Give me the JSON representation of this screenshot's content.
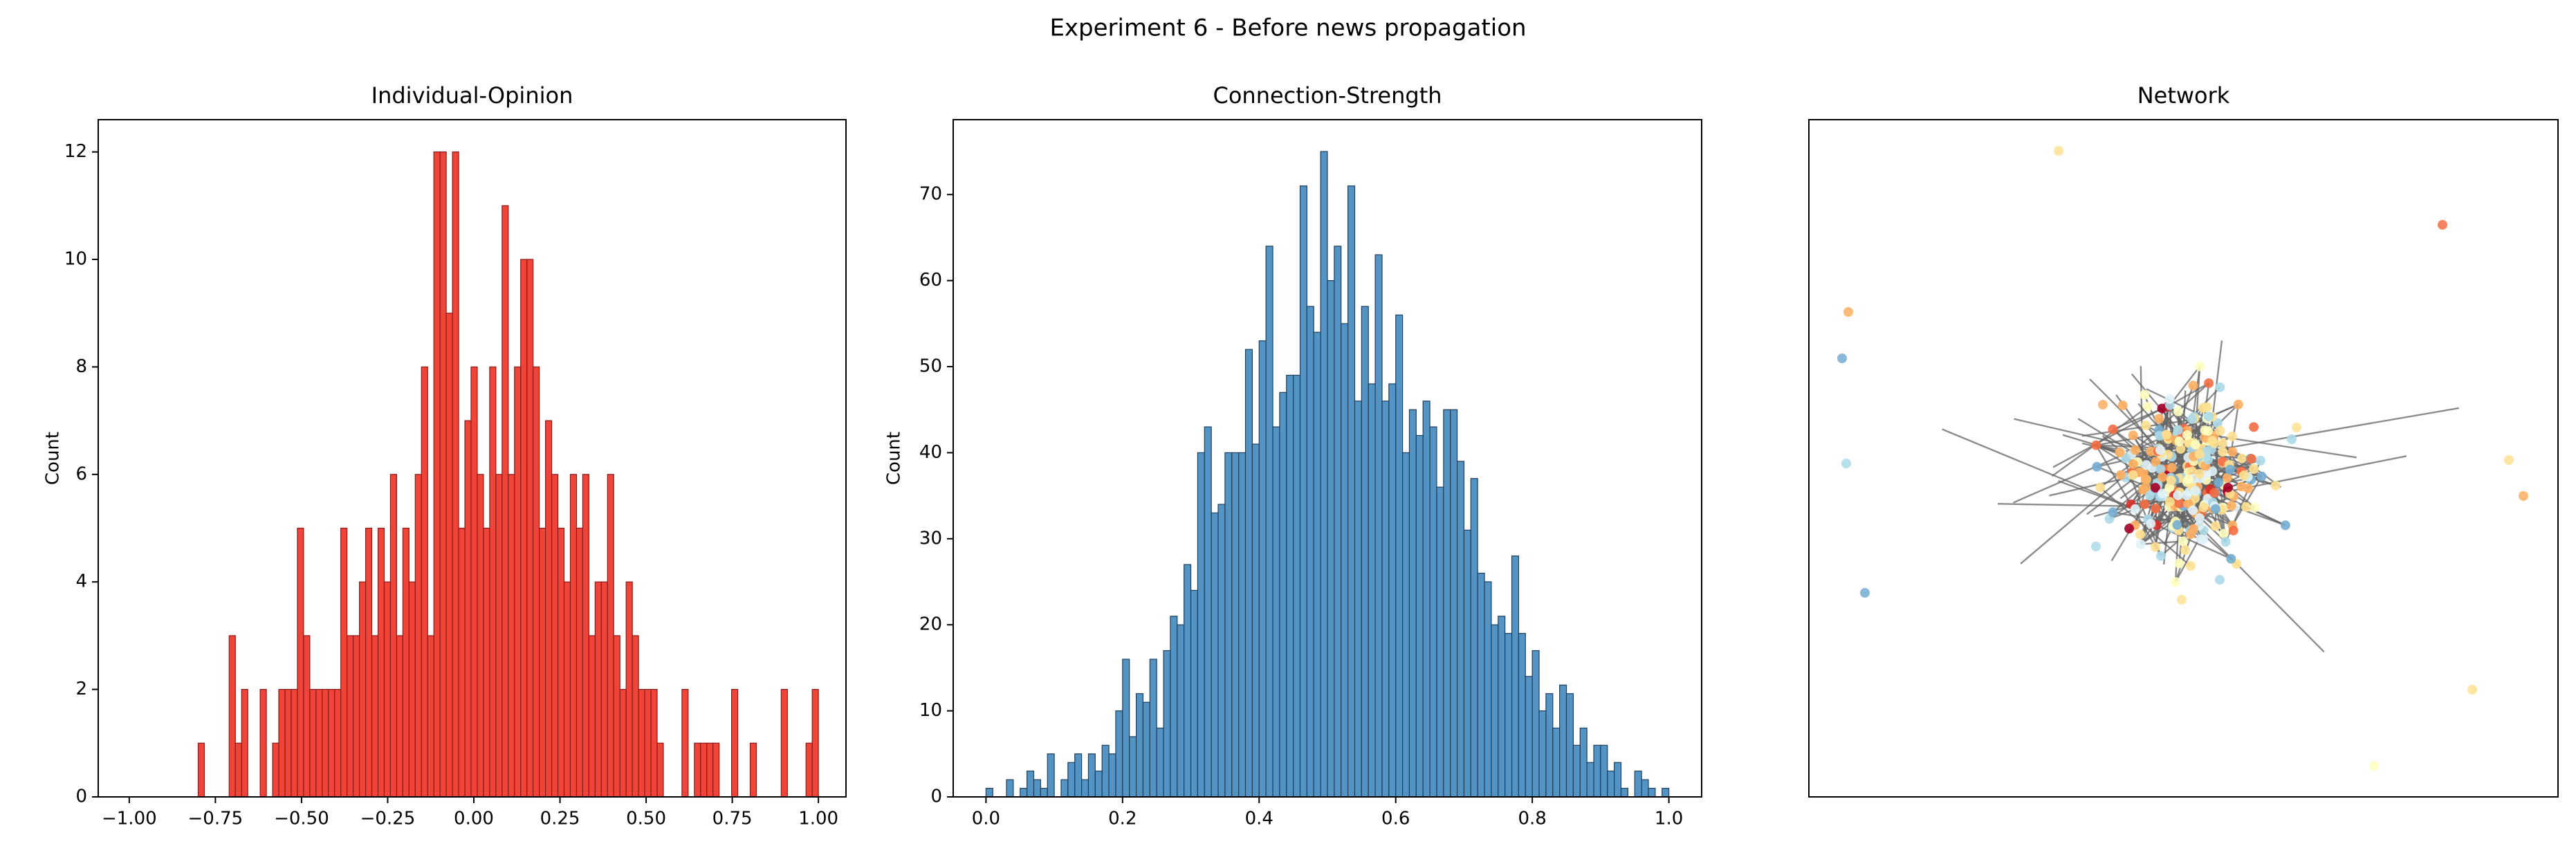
{
  "title": "Experiment 6 - Before news propagation",
  "chart_data": [
    {
      "type": "histogram",
      "title": "Individual-Opinion",
      "y_label": "Count",
      "color": "#f03a2e",
      "edge_color": "#8b1a1a",
      "bins": [
        -0.8,
        -0.782,
        -0.764,
        -0.746,
        -0.728,
        -0.71,
        -0.692,
        -0.674,
        -0.656,
        -0.638,
        -0.62,
        -0.602,
        -0.584,
        -0.566,
        -0.548,
        -0.53,
        -0.512,
        -0.494,
        -0.476,
        -0.458,
        -0.44,
        -0.422,
        -0.404,
        -0.386,
        -0.368,
        -0.35,
        -0.332,
        -0.314,
        -0.296,
        -0.278,
        -0.26,
        -0.242,
        -0.224,
        -0.206,
        -0.188,
        -0.17,
        -0.152,
        -0.134,
        -0.116,
        -0.098,
        -0.08,
        -0.062,
        -0.044,
        -0.026,
        -0.008,
        0.01,
        0.028,
        0.046,
        0.064,
        0.082,
        0.1,
        0.118,
        0.136,
        0.154,
        0.172,
        0.19,
        0.208,
        0.226,
        0.244,
        0.262,
        0.28,
        0.298,
        0.316,
        0.334,
        0.352,
        0.37,
        0.388,
        0.406,
        0.424,
        0.442,
        0.46,
        0.478,
        0.496,
        0.514,
        0.532,
        0.55,
        0.568,
        0.586,
        0.604,
        0.622,
        0.64,
        0.658,
        0.676,
        0.694,
        0.712,
        0.73,
        0.748,
        0.766,
        0.784,
        0.802,
        0.82,
        0.838,
        0.856,
        0.874,
        0.892,
        0.91,
        0.928,
        0.946,
        0.964,
        0.982,
        1.0
      ],
      "values": [
        1,
        0,
        0,
        0,
        0,
        3,
        1,
        2,
        0,
        0,
        2,
        0,
        1,
        2,
        2,
        2,
        5,
        3,
        2,
        2,
        2,
        2,
        2,
        5,
        3,
        3,
        4,
        5,
        3,
        5,
        4,
        6,
        3,
        5,
        4,
        6,
        8,
        3,
        12,
        12,
        9,
        12,
        5,
        7,
        8,
        6,
        5,
        8,
        6,
        11,
        6,
        8,
        10,
        10,
        8,
        5,
        7,
        6,
        5,
        4,
        6,
        5,
        6,
        3,
        4,
        4,
        6,
        3,
        2,
        4,
        3,
        2,
        2,
        2,
        1,
        0,
        0,
        0,
        2,
        0,
        1,
        1,
        1,
        1,
        0,
        0,
        2,
        0,
        0,
        1,
        0,
        0,
        0,
        0,
        2,
        0,
        0,
        0,
        1,
        2
      ],
      "xlim": [
        -1.09,
        1.08
      ],
      "ylim": [
        0,
        12.6
      ],
      "xticks": [
        {
          "value": -1.0,
          "label": "−1.00"
        },
        {
          "value": -0.75,
          "label": "−0.75"
        },
        {
          "value": -0.5,
          "label": "−0.50"
        },
        {
          "value": -0.25,
          "label": "−0.25"
        },
        {
          "value": 0,
          "label": "0.00"
        },
        {
          "value": 0.25,
          "label": "0.25"
        },
        {
          "value": 0.5,
          "label": "0.50"
        },
        {
          "value": 0.75,
          "label": "0.75"
        },
        {
          "value": 1.0,
          "label": "1.00"
        }
      ],
      "yticks": [
        0,
        2,
        4,
        6,
        8,
        10,
        12
      ]
    },
    {
      "type": "histogram",
      "title": "Connection-Strength",
      "y_label": "Count",
      "color": "#4b8ec2",
      "edge_color": "#1f3f5c",
      "bins": [
        0,
        0.01,
        0.02,
        0.03,
        0.04,
        0.05,
        0.06,
        0.07,
        0.08,
        0.09,
        0.1,
        0.11,
        0.12,
        0.13,
        0.14,
        0.15,
        0.16,
        0.17,
        0.18,
        0.19,
        0.2,
        0.21,
        0.22,
        0.23,
        0.24,
        0.25,
        0.26,
        0.27,
        0.28,
        0.29,
        0.3,
        0.31,
        0.32,
        0.33,
        0.34,
        0.35,
        0.36,
        0.37,
        0.38,
        0.39,
        0.4,
        0.41,
        0.42,
        0.43,
        0.44,
        0.45,
        0.46,
        0.47,
        0.48,
        0.49,
        0.5,
        0.51,
        0.52,
        0.53,
        0.54,
        0.55,
        0.56,
        0.57,
        0.58,
        0.59,
        0.6,
        0.61,
        0.62,
        0.63,
        0.64,
        0.65,
        0.66,
        0.67,
        0.68,
        0.69,
        0.7,
        0.71,
        0.72,
        0.73,
        0.74,
        0.75,
        0.76,
        0.77,
        0.78,
        0.79,
        0.8,
        0.81,
        0.82,
        0.83,
        0.84,
        0.85,
        0.86,
        0.87,
        0.88,
        0.89,
        0.9,
        0.91,
        0.92,
        0.93,
        0.94,
        0.95,
        0.96,
        0.97,
        0.98,
        0.99,
        1.0
      ],
      "values": [
        1,
        0,
        0,
        2,
        0,
        1,
        3,
        2,
        1,
        5,
        0,
        2,
        4,
        5,
        2,
        5,
        3,
        6,
        5,
        10,
        16,
        7,
        12,
        11,
        16,
        8,
        17,
        21,
        20,
        27,
        24,
        40,
        43,
        33,
        34,
        40,
        40,
        40,
        52,
        41,
        53,
        64,
        43,
        47,
        49,
        49,
        71,
        57,
        54,
        75,
        60,
        64,
        55,
        71,
        46,
        57,
        48,
        63,
        46,
        48,
        56,
        40,
        45,
        42,
        46,
        43,
        36,
        45,
        45,
        39,
        31,
        37,
        26,
        25,
        20,
        21,
        19,
        28,
        19,
        14,
        17,
        10,
        12,
        8,
        13,
        12,
        6,
        8,
        4,
        6,
        6,
        3,
        4,
        1,
        0,
        3,
        2,
        1,
        0,
        1
      ],
      "xlim": [
        -0.048,
        1.048
      ],
      "ylim": [
        0,
        78.7
      ],
      "xticks": [
        {
          "value": 0,
          "label": "0.0"
        },
        0.2,
        0.4,
        0.6,
        0.8,
        {
          "value": 1,
          "label": "1.0"
        }
      ],
      "yticks": [
        0,
        10,
        20,
        30,
        40,
        50,
        60,
        70
      ]
    },
    {
      "type": "network",
      "title": "Network"
    }
  ]
}
